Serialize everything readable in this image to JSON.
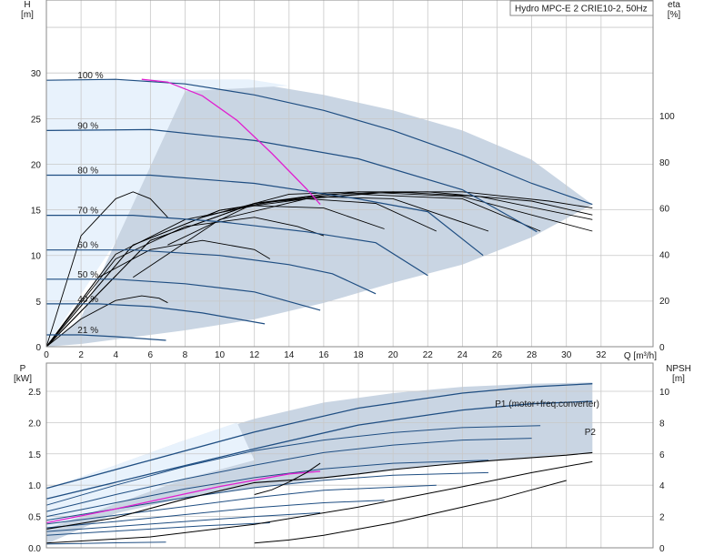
{
  "chart_data": [
    {
      "type": "line",
      "title": "Hydro MPC-E 2 CRIE10-2, 50Hz",
      "xlabel": "Q [m³/h]",
      "ylabel": "H\n[m]",
      "y2label": "eta\n[%]",
      "xlim": [
        0,
        35
      ],
      "ylim": [
        0,
        38
      ],
      "y2lim": [
        0,
        150
      ],
      "x_ticks": [
        0,
        2,
        4,
        6,
        8,
        10,
        12,
        14,
        16,
        18,
        20,
        22,
        24,
        26,
        28,
        30,
        32
      ],
      "y_ticks": [
        0,
        5,
        10,
        15,
        20,
        25,
        30
      ],
      "y2_ticks": [
        0,
        20,
        40,
        60,
        80,
        100
      ],
      "grid": true,
      "colors": {
        "grid": "#c8c8c8",
        "head": "#1f4e82",
        "eta": "#000000",
        "system": "#e020d0",
        "area_dark": "#c9d5e3",
        "area_light": "#e8f2fc"
      },
      "speed_labels": [
        "100 %",
        "90 %",
        "80 %",
        "70 %",
        "60 %",
        "50 %",
        "40 %",
        "21 %"
      ],
      "head_curves": [
        {
          "speed": "100 %",
          "x": [
            0,
            4,
            8,
            12,
            16,
            20,
            24,
            28,
            31.5
          ],
          "y": [
            29.2,
            29.3,
            28.8,
            27.6,
            25.9,
            23.7,
            21.0,
            17.9,
            15.6
          ]
        },
        {
          "speed": "90 %",
          "x": [
            0,
            6,
            12,
            18,
            24,
            28.3
          ],
          "y": [
            23.7,
            23.8,
            22.6,
            20.6,
            17.2,
            12.6
          ]
        },
        {
          "speed": "80 %",
          "x": [
            0,
            6,
            12,
            18,
            22,
            25.2
          ],
          "y": [
            18.8,
            18.8,
            17.9,
            16.2,
            14.8,
            10.0
          ]
        },
        {
          "speed": "70 %",
          "x": [
            0,
            5,
            10,
            15,
            19,
            22
          ],
          "y": [
            14.4,
            14.4,
            13.7,
            12.6,
            11.4,
            7.8
          ]
        },
        {
          "speed": "60 %",
          "x": [
            0,
            5,
            10,
            14,
            16.5,
            19
          ],
          "y": [
            10.6,
            10.6,
            10.0,
            9.0,
            8.0,
            5.8
          ]
        },
        {
          "speed": "50 %",
          "x": [
            0,
            4,
            8,
            12,
            15.8
          ],
          "y": [
            7.4,
            7.4,
            6.9,
            6.0,
            4.0
          ]
        },
        {
          "speed": "40 %",
          "x": [
            0,
            3,
            6,
            9,
            12.6
          ],
          "y": [
            4.7,
            4.7,
            4.4,
            3.7,
            2.5
          ]
        },
        {
          "speed": "21 %",
          "x": [
            0,
            2,
            4,
            6.9
          ],
          "y": [
            1.3,
            1.3,
            1.1,
            0.7
          ]
        }
      ],
      "system_curve": {
        "x": [
          5.5,
          7,
          9,
          11,
          13,
          15,
          15.8
        ],
        "y": [
          29.3,
          29.0,
          27.5,
          24.8,
          21.2,
          17.3,
          15.6
        ]
      },
      "eta_curves": [
        {
          "x": [
            0,
            2,
            4,
            5,
            6,
            7
          ],
          "y": [
            0,
            48,
            64,
            67,
            64,
            56
          ]
        },
        {
          "x": [
            0,
            2,
            4,
            5.5,
            6.5,
            7
          ],
          "y": [
            0,
            12,
            20,
            22,
            21,
            19
          ]
        },
        {
          "x": [
            0,
            3,
            6,
            9,
            12,
            12.9
          ],
          "y": [
            0,
            30,
            42,
            46,
            42,
            38
          ]
        },
        {
          "x": [
            0,
            4,
            8,
            12,
            14.5,
            16
          ],
          "y": [
            0,
            38,
            52,
            56,
            52,
            48
          ]
        },
        {
          "x": [
            0,
            4,
            8,
            12,
            16,
            19.5
          ],
          "y": [
            0,
            40,
            55,
            61,
            60,
            51
          ]
        },
        {
          "x": [
            0,
            5,
            10,
            15,
            19,
            22.5
          ],
          "y": [
            0,
            44,
            59,
            64,
            62,
            50
          ]
        },
        {
          "x": [
            0,
            5,
            10,
            15,
            20,
            25.5
          ],
          "y": [
            0,
            44,
            59,
            65,
            64,
            50
          ]
        },
        {
          "x": [
            0,
            6,
            12,
            18,
            24,
            28.5
          ],
          "y": [
            0,
            46,
            62,
            66,
            64,
            50
          ]
        },
        {
          "x": [
            0,
            6,
            12,
            18,
            24,
            31.5
          ],
          "y": [
            0,
            46,
            62,
            67,
            65,
            50
          ]
        },
        {
          "x": [
            5,
            10,
            15,
            20,
            25,
            31.5
          ],
          "y": [
            30,
            55,
            64,
            67,
            65,
            55
          ]
        },
        {
          "x": [
            7,
            12,
            16,
            22,
            28,
            31.5
          ],
          "y": [
            44,
            62,
            66,
            67,
            63,
            57
          ]
        },
        {
          "x": [
            9,
            14,
            18,
            24,
            29,
            31.5
          ],
          "y": [
            56,
            66,
            67,
            67,
            63,
            60
          ]
        }
      ],
      "area_dark": {
        "x": [
          0,
          2,
          4,
          6,
          8,
          11,
          16,
          20,
          24,
          28,
          31.5,
          31.5,
          28,
          24,
          20,
          16,
          12,
          8,
          4,
          2,
          0
        ],
        "y": [
          0,
          3.2,
          11.5,
          21.0,
          28.0,
          29.2,
          27.6,
          25.9,
          23.7,
          20.5,
          15.6,
          15.6,
          12.0,
          9.0,
          7.0,
          4.8,
          3.0,
          1.8,
          0.8,
          0.3,
          0
        ]
      },
      "area_light": {
        "x": [
          0,
          5.5,
          11.7,
          14,
          8,
          4,
          0
        ],
        "y": [
          29.2,
          29.3,
          29.3,
          28.6,
          28.0,
          11.5,
          0
        ]
      }
    },
    {
      "type": "line",
      "ylabel": "P\n[kW]",
      "y2label": "NPSH\n[m]",
      "xlim": [
        0,
        35
      ],
      "ylim": [
        0,
        2.95
      ],
      "y2lim": [
        0,
        11.8
      ],
      "y_ticks": [
        "0.0",
        "0.5",
        "1.0",
        "1.5",
        "2.0",
        "2.5"
      ],
      "y2_ticks": [
        0,
        2,
        4,
        6,
        8,
        10
      ],
      "grid": true,
      "series": [
        {
          "name": "P1 (motor+freq.converter)",
          "x": [
            0,
            6,
            12,
            18,
            24,
            28,
            31.5
          ],
          "y": [
            0.95,
            1.4,
            1.85,
            2.23,
            2.47,
            2.57,
            2.62
          ]
        },
        {
          "name": "P2",
          "x": [
            0,
            6,
            12,
            18,
            24,
            28,
            31.5
          ],
          "y": [
            0.78,
            1.18,
            1.58,
            1.96,
            2.2,
            2.3,
            2.34
          ]
        }
      ],
      "power_curves": [
        {
          "x": [
            0,
            4,
            8,
            12,
            16,
            20,
            24,
            28.5
          ],
          "y": [
            0.68,
            1.0,
            1.3,
            1.55,
            1.72,
            1.84,
            1.92,
            1.95
          ]
        },
        {
          "x": [
            0,
            4,
            8,
            12,
            16,
            20,
            24,
            28
          ],
          "y": [
            0.58,
            0.85,
            1.1,
            1.32,
            1.52,
            1.64,
            1.72,
            1.75
          ]
        },
        {
          "x": [
            0,
            4,
            8,
            12,
            16,
            20,
            25.5
          ],
          "y": [
            0.5,
            0.72,
            0.94,
            1.12,
            1.26,
            1.35,
            1.4
          ]
        },
        {
          "x": [
            0,
            4,
            8,
            12,
            16,
            20,
            25.5
          ],
          "y": [
            0.44,
            0.62,
            0.8,
            0.96,
            1.08,
            1.16,
            1.2
          ]
        },
        {
          "x": [
            0,
            4,
            8,
            12,
            16,
            22.5
          ],
          "y": [
            0.38,
            0.52,
            0.66,
            0.8,
            0.92,
            1.0
          ]
        },
        {
          "x": [
            0,
            4,
            8,
            12,
            16,
            19.5
          ],
          "y": [
            0.32,
            0.42,
            0.53,
            0.64,
            0.72,
            0.76
          ]
        },
        {
          "x": [
            0,
            4,
            8,
            12,
            15.8
          ],
          "y": [
            0.26,
            0.34,
            0.42,
            0.5,
            0.56
          ]
        },
        {
          "x": [
            0,
            3,
            6,
            9,
            12.9
          ],
          "y": [
            0.2,
            0.25,
            0.3,
            0.35,
            0.4
          ]
        },
        {
          "x": [
            0,
            2,
            4,
            6.9
          ],
          "y": [
            0.06,
            0.07,
            0.08,
            0.09
          ]
        }
      ],
      "system_power": {
        "x": [
          0,
          4,
          8,
          12,
          16,
          18,
          20,
          23,
          26,
          30,
          31.5
        ],
        "y": [
          0.3,
          0.48,
          0.78,
          1.04,
          1.12,
          1.18,
          1.25,
          1.33,
          1.4,
          1.48,
          1.52
        ]
      },
      "power_pink": {
        "x": [
          0,
          4,
          8,
          10,
          12,
          14,
          15.8
        ],
        "y": [
          0.4,
          0.62,
          0.86,
          0.98,
          1.08,
          1.18,
          1.22
        ]
      },
      "npsh_curves": [
        {
          "x": [
            0,
            6,
            12,
            18,
            24,
            28,
            31.5
          ],
          "y": [
            0.3,
            0.7,
            1.5,
            2.6,
            3.9,
            4.8,
            5.5
          ]
        },
        {
          "x": [
            12,
            13,
            14,
            15,
            15.8
          ],
          "y": [
            3.4,
            3.7,
            4.2,
            4.8,
            5.4
          ]
        },
        {
          "x": [
            12,
            14,
            16,
            18,
            20,
            22,
            24,
            26,
            28,
            30
          ],
          "y": [
            0.3,
            0.5,
            0.8,
            1.2,
            1.6,
            2.1,
            2.6,
            3.1,
            3.7,
            4.3
          ]
        }
      ],
      "area_dark": {
        "x": [
          0,
          4,
          8,
          12,
          16,
          20,
          24,
          28,
          31.5,
          31.5,
          28,
          24,
          20,
          16,
          12,
          8,
          4,
          0
        ],
        "y": [
          0.95,
          1.32,
          1.72,
          2.06,
          2.32,
          2.47,
          2.57,
          2.62,
          2.64,
          1.52,
          1.45,
          1.36,
          1.24,
          1.1,
          0.95,
          0.8,
          0.55,
          0.06
        ]
      },
      "area_light": {
        "x": [
          0,
          4,
          8,
          11,
          12,
          8,
          4,
          0
        ],
        "y": [
          0.95,
          1.32,
          1.72,
          2.0,
          1.4,
          1.1,
          0.7,
          0.3
        ]
      }
    }
  ]
}
